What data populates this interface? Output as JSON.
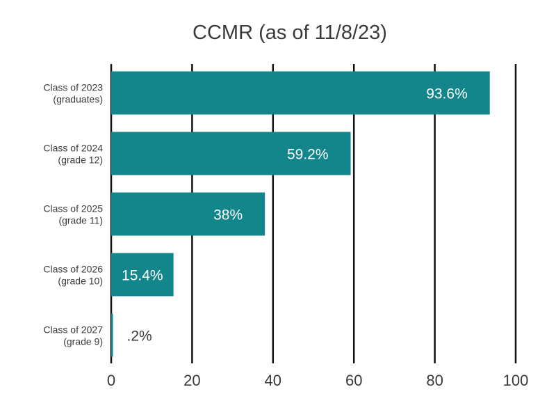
{
  "chart_data": {
    "type": "bar",
    "orientation": "horizontal",
    "title": "CCMR (as of 11/8/23)",
    "xlabel": "",
    "ylabel": "",
    "categories": [
      [
        "Class of 2023",
        "(graduates)"
      ],
      [
        "Class of 2024",
        "(grade 12)"
      ],
      [
        "Class of 2025",
        "(grade 11)"
      ],
      [
        "Class of 2026",
        "(grade 10)"
      ],
      [
        "Class of 2027",
        "(grade 9)"
      ]
    ],
    "values": [
      93.6,
      59.2,
      38,
      15.4,
      0.2
    ],
    "value_labels": [
      "93.6%",
      "59.2%",
      "38%",
      "15.4%",
      ".2%"
    ],
    "xlim": [
      0,
      100
    ],
    "x_ticks": [
      0,
      20,
      40,
      60,
      80,
      100
    ],
    "x_tick_labels": [
      "0",
      "20",
      "40",
      "60",
      "80",
      "100"
    ],
    "grid": true,
    "legend": "none",
    "colors": {
      "bar": "#12868a",
      "grid": "#111111",
      "text": "#3a3a3a",
      "label_inside": "#ffffff",
      "label_outside": "#3a3a3a"
    }
  }
}
